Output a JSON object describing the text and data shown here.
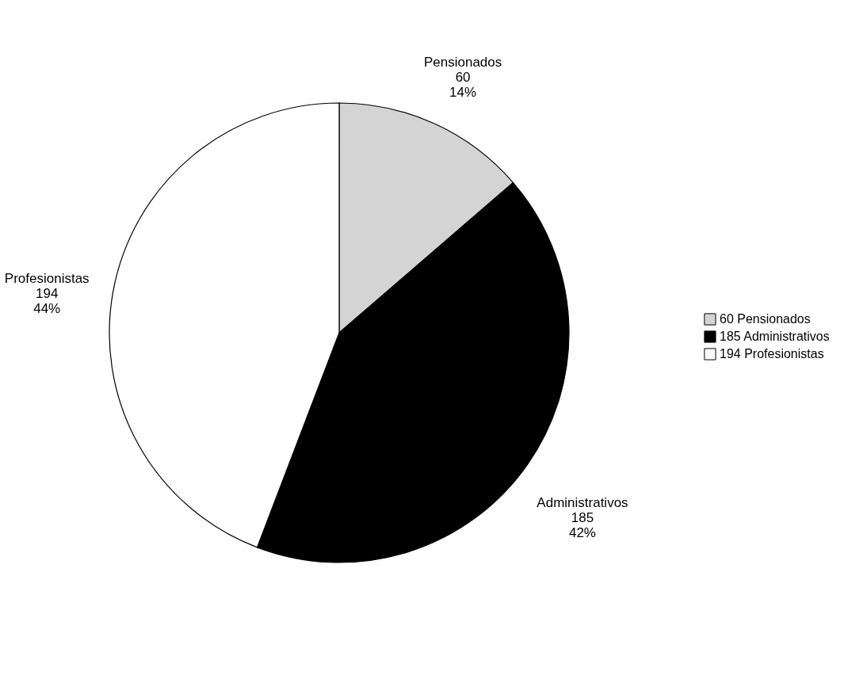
{
  "chart_data": {
    "type": "pie",
    "categories": [
      "60 Pensionados",
      "185 Administrativos",
      "194 Profesionistas"
    ],
    "values": [
      60,
      185,
      194
    ],
    "colors": [
      "#d4d4d4",
      "#000000",
      "#ffffff"
    ],
    "value_labels": [
      "Pensionados\n60\n14%",
      "Administrativos\n185\n42%",
      "Profesionistas\n194\n44%"
    ],
    "legend": "right"
  }
}
